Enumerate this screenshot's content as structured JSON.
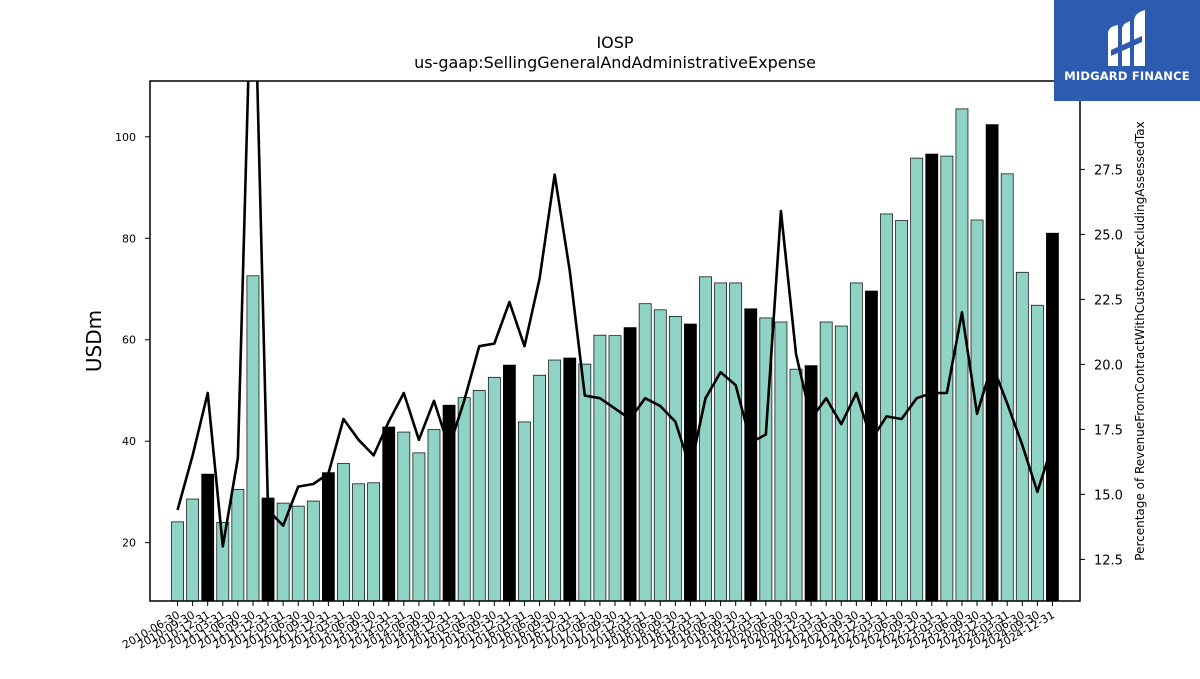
{
  "chart_data": {
    "type": "bar",
    "title": "IOSP",
    "subtitle": "us-gaap:SellingGeneralAndAdministrativeExpense",
    "ylabel": "USDm",
    "y2label": "Percentage of RevenueFromContractWithCustomerExcludingAssessedTax",
    "ylim": [
      8.5,
      111
    ],
    "y2lim": [
      10.9,
      30.9
    ],
    "yticks": [
      20,
      40,
      60,
      80,
      100
    ],
    "y2ticks": [
      12.5,
      15.0,
      17.5,
      20.0,
      22.5,
      25.0,
      27.5
    ],
    "y2tick_labels": [
      "12.5",
      "15.0",
      "17.5",
      "20.0",
      "22.5",
      "25.0",
      "27.5"
    ],
    "colors": {
      "bar": "#8fd3c4",
      "bar_highlight": "#000000",
      "line": "#000000"
    },
    "categories": [
      "2010-06-30",
      "2010-09-30",
      "2010-12-31",
      "2011-03-31",
      "2011-06-30",
      "2011-09-30",
      "2011-12-31",
      "2012-03-31",
      "2012-06-30",
      "2012-09-30",
      "2012-12-31",
      "2013-03-31",
      "2013-06-30",
      "2013-09-30",
      "2013-12-31",
      "2014-03-31",
      "2014-06-30",
      "2014-09-30",
      "2014-12-31",
      "2015-03-31",
      "2015-06-30",
      "2015-09-30",
      "2015-12-31",
      "2016-03-31",
      "2016-06-30",
      "2016-09-30",
      "2016-12-31",
      "2017-03-31",
      "2017-06-30",
      "2017-09-30",
      "2017-12-31",
      "2018-03-31",
      "2018-06-30",
      "2018-09-30",
      "2018-12-31",
      "2019-03-31",
      "2019-06-30",
      "2019-09-30",
      "2019-12-31",
      "2020-03-31",
      "2020-06-30",
      "2020-09-30",
      "2020-12-31",
      "2021-03-31",
      "2021-06-30",
      "2021-09-30",
      "2021-12-31",
      "2022-03-31",
      "2022-06-30",
      "2022-09-30",
      "2022-12-31",
      "2023-03-31",
      "2023-06-30",
      "2023-09-30",
      "2023-12-31",
      "2024-03-31",
      "2024-06-30",
      "2024-09-30",
      "2024-12-31"
    ],
    "tick_labels": [
      "2010-06-30",
      "2010-09-30",
      "2010-12-31",
      "2011-03-31",
      "2011-06-30",
      "2011-09-30",
      "2011-12-31",
      "2012-03-31",
      "2012-06-30",
      "2012-09-30",
      "2012-12-31",
      "2013-03-31",
      "2013-06-30",
      "2013-09-30",
      "2013-12-31",
      "2014-03-31",
      "2014-06-30",
      "2014-09-30",
      "2014-12-31",
      "2015-03-31",
      "2015-06-30",
      "2015-09-30",
      "2015-12-31",
      "2016-03-31",
      "2016-06-30",
      "2016-09-30",
      "2016-12-31",
      "2017-03-31",
      "2017-06-30",
      "2017-09-30",
      "2017-12-31",
      "2018-03-31",
      "2018-06-30",
      "2018-09-30",
      "2018-12-31",
      "2019-03-31",
      "2019-06-30",
      "2019-09-30",
      "2019-12-31",
      "2020-03-31",
      "2020-06-30",
      "2020-09-30",
      "2020-12-31",
      "2021-03-31",
      "2021-06-30",
      "2021-09-30",
      "2021-12-31",
      "2022-03-31",
      "2022-06-30",
      "2022-09-30",
      "2022-12-31",
      "2023-03-31",
      "2023-06-30",
      "2023-09-30",
      "2023-12-31",
      "2024-03-31",
      "2024-06-30",
      "2024-09-30",
      "2024-12-31"
    ],
    "series": [
      {
        "axis": "left",
        "kind": "bar",
        "values": [
          24.1,
          28.6,
          33.5,
          24.0,
          30.5,
          72.6,
          28.8,
          27.8,
          27.2,
          28.2,
          33.8,
          35.6,
          31.6,
          31.8,
          42.8,
          41.8,
          37.7,
          42.3,
          47.1,
          48.6,
          50.0,
          52.6,
          55.0,
          43.8,
          53.0,
          56.0,
          56.4,
          55.2,
          60.9,
          60.8,
          62.4,
          67.1,
          65.9,
          64.6,
          63.1,
          72.4,
          71.2,
          71.2,
          66.1,
          64.3,
          63.5,
          54.2,
          54.9,
          63.5,
          62.7,
          71.2,
          69.6,
          84.8,
          83.5,
          95.8,
          96.6,
          96.2,
          105.5,
          83.6,
          102.4,
          92.7,
          73.3,
          66.8,
          81.0
        ],
        "highlight": [
          false,
          false,
          true,
          false,
          false,
          false,
          true,
          false,
          false,
          false,
          true,
          false,
          false,
          false,
          true,
          false,
          false,
          false,
          true,
          false,
          false,
          false,
          true,
          false,
          false,
          false,
          true,
          false,
          false,
          false,
          true,
          false,
          false,
          false,
          true,
          false,
          false,
          false,
          true,
          false,
          false,
          false,
          true,
          false,
          false,
          false,
          true,
          false,
          false,
          false,
          true,
          false,
          false,
          false,
          true,
          false,
          false,
          false,
          true
        ]
      },
      {
        "axis": "right",
        "kind": "line",
        "values": [
          14.4,
          16.5,
          18.9,
          13.0,
          16.4,
          37.5,
          14.4,
          13.8,
          15.3,
          15.4,
          15.8,
          17.9,
          17.1,
          16.5,
          17.8,
          18.9,
          17.1,
          18.6,
          16.8,
          18.6,
          20.7,
          20.8,
          22.4,
          20.7,
          23.3,
          27.3,
          23.6,
          18.8,
          18.7,
          18.3,
          17.9,
          18.7,
          18.4,
          17.8,
          16.0,
          18.7,
          19.7,
          19.2,
          17.0,
          17.3,
          25.9,
          20.4,
          17.9,
          18.7,
          17.7,
          18.9,
          17.1,
          18.0,
          17.9,
          18.7,
          18.9,
          18.9,
          22.0,
          18.1,
          20.0,
          18.5,
          16.9,
          15.1,
          16.9
        ]
      }
    ]
  },
  "logo": {
    "text": "MIDGARD FINANCE",
    "background": "#2c5bb0"
  }
}
